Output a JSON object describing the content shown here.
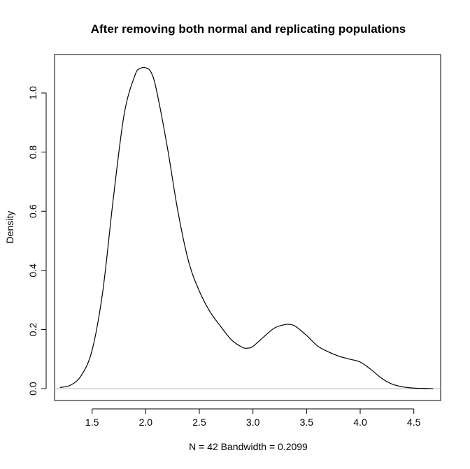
{
  "chart_data": {
    "type": "line",
    "title": "After removing both normal and replicating populations",
    "xlabel": "N = 42   Bandwidth = 0.2099",
    "ylabel": "Density",
    "xlim": [
      1.15,
      4.75
    ],
    "ylim": [
      -0.04,
      1.13
    ],
    "x_ticks": [
      1.5,
      2.0,
      2.5,
      3.0,
      3.5,
      4.0,
      4.5
    ],
    "x_tick_labels": [
      "1.5",
      "2.0",
      "2.5",
      "3.0",
      "3.5",
      "4.0",
      "4.5"
    ],
    "y_ticks": [
      0.0,
      0.2,
      0.4,
      0.6,
      0.8,
      1.0
    ],
    "y_tick_labels": [
      "0.0",
      "0.2",
      "0.4",
      "0.6",
      "0.8",
      "1.0"
    ],
    "baseline": 0,
    "grid": false,
    "legend": "none",
    "colors": {
      "line": "#000000",
      "baseline": "#b3b3b3",
      "frame": "#000000"
    },
    "series": [
      {
        "x": [
          1.2,
          1.3,
          1.4,
          1.5,
          1.6,
          1.7,
          1.8,
          1.9,
          1.95,
          2.0,
          2.05,
          2.1,
          2.2,
          2.3,
          2.4,
          2.5,
          2.6,
          2.7,
          2.8,
          2.9,
          2.95,
          3.0,
          3.1,
          3.2,
          3.3,
          3.35,
          3.4,
          3.5,
          3.6,
          3.7,
          3.8,
          3.9,
          4.0,
          4.1,
          4.2,
          4.3,
          4.4,
          4.5,
          4.6,
          4.68
        ],
        "y": [
          0.004,
          0.012,
          0.045,
          0.13,
          0.33,
          0.65,
          0.93,
          1.06,
          1.083,
          1.085,
          1.07,
          1.01,
          0.82,
          0.6,
          0.43,
          0.33,
          0.26,
          0.21,
          0.165,
          0.14,
          0.137,
          0.143,
          0.175,
          0.205,
          0.217,
          0.217,
          0.21,
          0.18,
          0.145,
          0.125,
          0.11,
          0.1,
          0.09,
          0.065,
          0.035,
          0.015,
          0.006,
          0.002,
          0.001,
          0.0
        ]
      }
    ]
  }
}
